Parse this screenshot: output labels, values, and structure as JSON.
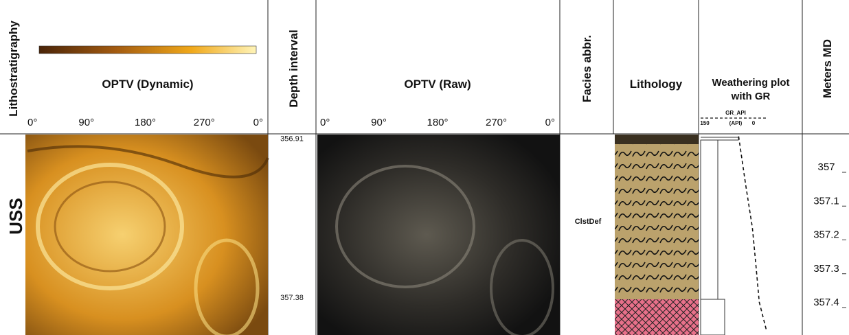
{
  "lithostratigraphy": {
    "title": "Lithostratigraphy",
    "unit": "USS"
  },
  "optv_dynamic": {
    "title": "OPTV (Dynamic)",
    "azimuth_ticks": [
      "0°",
      "90°",
      "180°",
      "270°",
      "0°"
    ]
  },
  "depth_interval": {
    "title": "Depth interval",
    "depths": [
      356.91,
      357.38
    ]
  },
  "optv_raw": {
    "title": "OPTV (Raw)",
    "azimuth_ticks": [
      "0°",
      "90°",
      "180°",
      "270°",
      "0°"
    ]
  },
  "facies": {
    "title": "Facies abbr.",
    "label": "ClstDef"
  },
  "lithology": {
    "title": "Lithology"
  },
  "weathering": {
    "title_line1": "Weathering plot",
    "title_line2": "with GR",
    "gr_name": "GR_API",
    "gr_unit": "(API)",
    "gr_scale": [
      150,
      0
    ],
    "gr_depths": [
      356.91,
      357.05,
      357.18,
      357.28,
      357.4,
      357.48
    ],
    "gr_values": [
      67,
      52,
      37,
      30,
      22,
      7
    ]
  },
  "meters_md": {
    "title": "Meters MD",
    "ticks": [
      357,
      357.1,
      357.2,
      357.3,
      357.4
    ]
  }
}
